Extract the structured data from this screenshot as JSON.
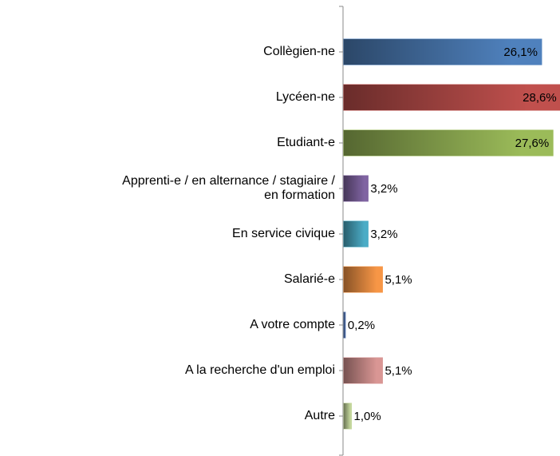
{
  "chart_data": {
    "type": "bar",
    "orientation": "horizontal",
    "categories": [
      "Collègien-ne",
      "Lycéen-ne",
      "Etudiant-e",
      "Apprenti-e / en alternance / stagiaire /\nen formation",
      "En service civique",
      "Salarié-e",
      "A votre compte",
      "A la recherche d'un emploi",
      "Autre"
    ],
    "values": [
      26.1,
      28.6,
      27.6,
      3.2,
      3.2,
      5.1,
      0.2,
      5.1,
      1.0
    ],
    "value_labels": [
      "26,1%",
      "28,6%",
      "27,6%",
      "3,2%",
      "3,2%",
      "5,1%",
      "0,2%",
      "5,1%",
      "1,0%"
    ],
    "colors": [
      "#4f81bd",
      "#c0504d",
      "#9bbb59",
      "#8064a2",
      "#4bacc6",
      "#f79646",
      "#4f6fa8",
      "#d99694",
      "#c3d69b"
    ]
  }
}
